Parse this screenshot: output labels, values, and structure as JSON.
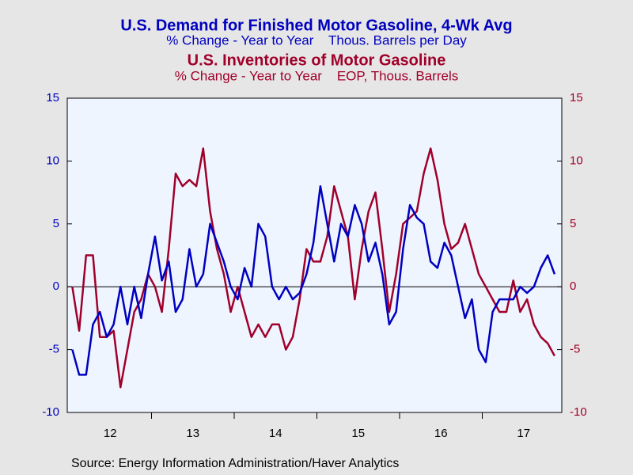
{
  "chart_data": {
    "type": "line",
    "series": [
      {
        "name": "U.S. Demand for Finished Motor Gasoline, 4-Wk Avg",
        "units": "% Change - Year to Year    Thous. Barrels per Day",
        "color": "#0000c0",
        "axis": "y",
        "values": [
          -5,
          -7,
          -7,
          -3,
          -2,
          -4,
          -3,
          0,
          -3,
          0,
          -2.5,
          1,
          4,
          0.5,
          2,
          -2,
          -1,
          3,
          0,
          1,
          5,
          3.5,
          2,
          0,
          -1,
          1.5,
          0,
          5,
          4,
          0,
          -1,
          0,
          -1,
          -0.5,
          1,
          3.5,
          8,
          5,
          2,
          5,
          4,
          6.5,
          5,
          2,
          3.5,
          1,
          -3,
          -2,
          3,
          6.5,
          5.5,
          5,
          2,
          1.5,
          3.5,
          2.5,
          0,
          -2.5,
          -1,
          -5,
          -6,
          -2,
          -1,
          -1,
          -1,
          0,
          -0.5,
          0,
          1.5,
          2.5,
          1
        ]
      },
      {
        "name": "U.S. Inventories of Motor Gasoline",
        "units": "% Change - Year to Year    EOP, Thous. Barrels",
        "color": "#a0002a",
        "axis": "y2",
        "values": [
          0,
          -3.5,
          2.5,
          2.5,
          -4,
          -4,
          -3.5,
          -8,
          -5,
          -2,
          -1,
          1,
          0,
          -2,
          3,
          9,
          8,
          8.5,
          8,
          11,
          6,
          3,
          1,
          -2,
          0,
          -2,
          -4,
          -3,
          -4,
          -3,
          -3,
          -5,
          -4,
          -1,
          3,
          2,
          2,
          4,
          8,
          6,
          4,
          -1,
          3,
          6,
          7.5,
          3,
          -2,
          1,
          5,
          5.5,
          6,
          9,
          11,
          8.5,
          5,
          3,
          3.5,
          5,
          3,
          1,
          0,
          -1,
          -2,
          -2,
          0.5,
          -2,
          -1,
          -3,
          -4,
          -4.5,
          -5.5
        ]
      }
    ],
    "categories": [
      null,
      null,
      null,
      null,
      null,
      null,
      "12",
      null,
      null,
      null,
      null,
      null,
      null,
      null,
      null,
      null,
      null,
      null,
      "13",
      null,
      null,
      null,
      null,
      null,
      null,
      null,
      null,
      null,
      null,
      null,
      "14",
      null,
      null,
      null,
      null,
      null,
      null,
      null,
      null,
      null,
      null,
      null,
      "15",
      null,
      null,
      null,
      null,
      null,
      null,
      null,
      null,
      null,
      null,
      null,
      "16",
      null,
      null,
      null,
      null,
      null,
      null,
      null,
      null,
      null,
      null,
      null,
      "17",
      null,
      null,
      null,
      null
    ],
    "ylim": [
      -10,
      15
    ],
    "yticks": [
      -10,
      -5,
      0,
      5,
      10,
      15
    ],
    "y2lim": [
      -10,
      15
    ],
    "y2ticks": [
      -10,
      -5,
      0,
      5,
      10,
      15
    ],
    "source": "Source:  Energy Information Administration/Haver Analytics"
  }
}
